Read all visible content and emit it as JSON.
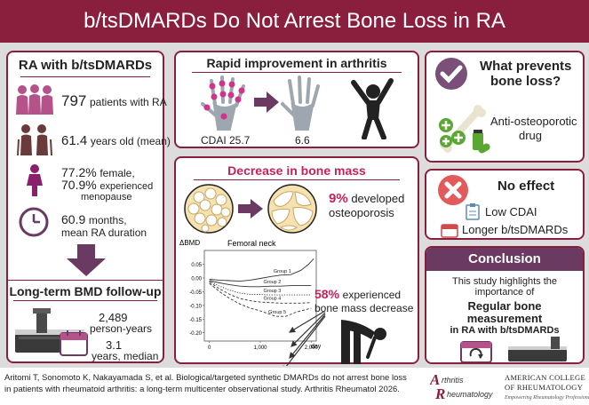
{
  "banner": {
    "title": "b/tsDMARDs Do Not Arrest Bone Loss in RA"
  },
  "left": {
    "title": "RA with b/tsDMARDs",
    "patients_num": "797",
    "patients_text": "patients with RA",
    "age_num": "61.4",
    "age_text": "years old (mean)",
    "female_num": "77.2%",
    "female_text": "female,",
    "meno_num": "70.9%",
    "meno_text1": "experienced",
    "meno_text2": "menopause",
    "duration_num": "60.9",
    "duration_text1": "months,",
    "duration_text2": "mean RA duration",
    "followup_title": "Long-term BMD follow-up",
    "py_num": "2,489",
    "py_text": "person-years",
    "median_num": "3.1",
    "median_text": "years, median"
  },
  "arthritis": {
    "title": "Rapid improvement in arthritis",
    "cdai_before": "CDAI 25.7",
    "cdai_after": "6.6"
  },
  "bone": {
    "title": "Decrease in bone mass",
    "osteo_num": "9%",
    "osteo_text1": "developed",
    "osteo_text2": "osteoporosis",
    "decrease_num": "58%",
    "decrease_text1": "experienced",
    "decrease_text2": "bone mass decrease"
  },
  "chart_data": {
    "type": "line",
    "title": "Femoral neck",
    "ylabel": "ΔBMD",
    "xlabel": "day",
    "xlim": [
      -100,
      2100
    ],
    "ylim": [
      -0.23,
      0.1
    ],
    "xticks": [
      "0",
      "1,000",
      "2,000"
    ],
    "yticks": [
      "0.05",
      "0.00",
      "-0.05",
      "-0.10",
      "-0.15",
      "-0.20"
    ],
    "series": [
      {
        "name": "Group 1",
        "style": "solid",
        "x": [
          0,
          200,
          400,
          600,
          800,
          1000,
          1200,
          1400,
          1600,
          1800,
          1950,
          2050
        ],
        "y": [
          -0.005,
          -0.008,
          -0.01,
          -0.012,
          -0.008,
          -0.002,
          0.005,
          0.01,
          0.012,
          0.028,
          0.05,
          0.07
        ]
      },
      {
        "name": "Group 2",
        "style": "solid",
        "x": [
          0,
          200,
          400,
          600,
          800,
          1000,
          1200,
          1400,
          1600,
          1800,
          2000
        ],
        "y": [
          -0.01,
          -0.018,
          -0.025,
          -0.03,
          -0.032,
          -0.032,
          -0.03,
          -0.03,
          -0.028,
          -0.028,
          -0.028
        ]
      },
      {
        "name": "Group 3",
        "style": "dotted",
        "x": [
          0,
          200,
          400,
          600,
          800,
          1000,
          1200,
          1400,
          1600,
          1800,
          2000
        ],
        "y": [
          -0.012,
          -0.03,
          -0.045,
          -0.055,
          -0.06,
          -0.06,
          -0.062,
          -0.062,
          -0.062,
          -0.062,
          -0.062
        ]
      },
      {
        "name": "Group 4",
        "style": "dashed",
        "x": [
          0,
          200,
          400,
          600,
          800,
          1000,
          1200,
          1400,
          1600,
          1800,
          2000
        ],
        "y": [
          -0.015,
          -0.04,
          -0.06,
          -0.075,
          -0.083,
          -0.088,
          -0.09,
          -0.092,
          -0.092,
          -0.092,
          -0.09
        ]
      },
      {
        "name": "Group 5",
        "style": "dashed",
        "x": [
          0,
          200,
          400,
          600,
          800,
          1000,
          1150,
          1300,
          1500,
          1700,
          1900,
          2000
        ],
        "y": [
          -0.02,
          -0.05,
          -0.075,
          -0.095,
          -0.11,
          -0.12,
          -0.13,
          -0.14,
          -0.14,
          -0.125,
          -0.115,
          -0.11
        ]
      }
    ]
  },
  "prevents": {
    "title1": "What prevents",
    "title2": "bone loss?",
    "drug1": "Anti-osteoporotic",
    "drug2": "drug"
  },
  "noeffect": {
    "title": "No effect",
    "item1": "Low CDAI",
    "item2": "Longer b/tsDMARDs"
  },
  "conclusion": {
    "title": "Conclusion",
    "line1": "This study highlights the",
    "line2": "importance of",
    "bold1": "Regular bone",
    "bold2": "measurement",
    "line3": "in RA with b/tsDMARDs"
  },
  "footer": {
    "citation1": "Aritomi T, Sonomoto K, Nakayamada S, et al. Biological/targeted synthetic DMARDs do not arrest bone loss",
    "citation2": "in patients with rheumatoid arthritis: a long-term multicenter observational study. Arthritis Rheumatol 2026.",
    "journal1": "rthritis",
    "journal2": "heumatology",
    "college1": "American College",
    "college2": "of Rheumatology",
    "college3": "Empowering Rheumatology Professionals"
  },
  "colors": {
    "accent": "#8a1f3d",
    "highlight": "#c7215a",
    "green": "#5aa832",
    "purple": "#6b3a63"
  }
}
